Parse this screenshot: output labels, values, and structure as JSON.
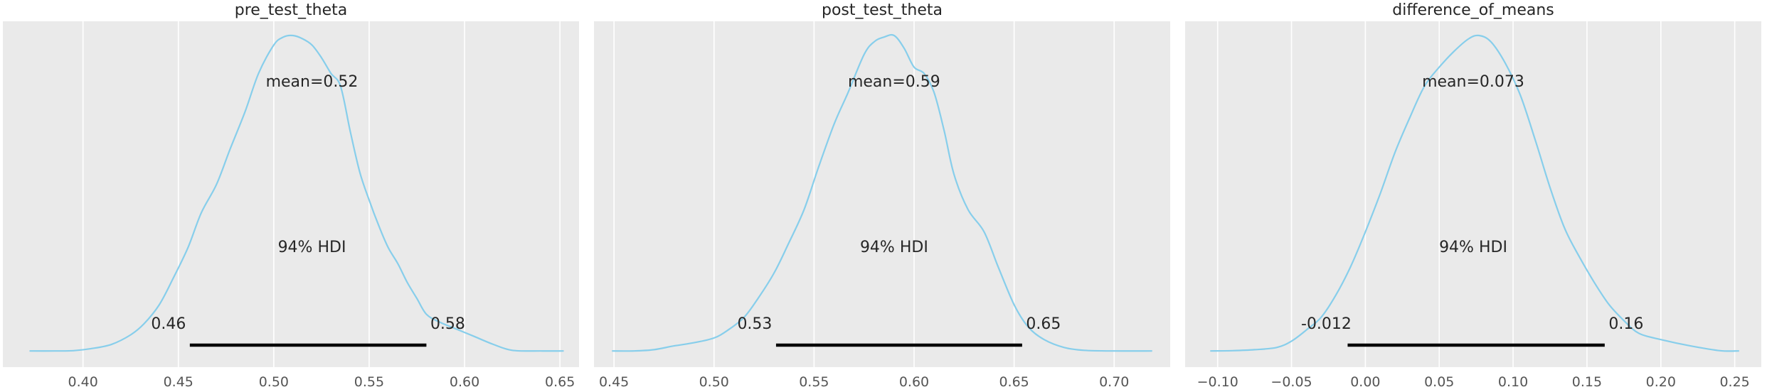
{
  "chart_data": [
    {
      "type": "density",
      "title": "pre_test_theta",
      "xlim": [
        0.358,
        0.66
      ],
      "xticks": [
        0.4,
        0.45,
        0.5,
        0.55,
        0.6,
        0.65
      ],
      "xtick_labels": [
        "0.40",
        "0.45",
        "0.50",
        "0.55",
        "0.60",
        "0.65"
      ],
      "mean": 0.52,
      "mean_label": "mean=0.52",
      "hdi_label": "94% HDI",
      "hdi": [
        0.456,
        0.58
      ],
      "hdi_labels": [
        "0.46",
        "0.58"
      ],
      "density": {
        "x": [
          0.372,
          0.385,
          0.395,
          0.405,
          0.415,
          0.425,
          0.432,
          0.44,
          0.447,
          0.455,
          0.462,
          0.47,
          0.477,
          0.485,
          0.492,
          0.5,
          0.505,
          0.51,
          0.515,
          0.52,
          0.525,
          0.53,
          0.535,
          0.54,
          0.545,
          0.55,
          0.555,
          0.56,
          0.565,
          0.57,
          0.575,
          0.58,
          0.587,
          0.595,
          0.605,
          0.615,
          0.625,
          0.64,
          0.652
        ],
        "y": [
          0.004,
          0.004,
          0.005,
          0.012,
          0.025,
          0.055,
          0.09,
          0.15,
          0.23,
          0.33,
          0.44,
          0.53,
          0.64,
          0.76,
          0.88,
          0.97,
          0.995,
          1.0,
          0.99,
          0.97,
          0.93,
          0.88,
          0.84,
          0.7,
          0.57,
          0.48,
          0.4,
          0.33,
          0.28,
          0.22,
          0.17,
          0.12,
          0.095,
          0.075,
          0.05,
          0.025,
          0.006,
          0.004,
          0.004
        ]
      }
    },
    {
      "type": "density",
      "title": "post_test_theta",
      "xlim": [
        0.44,
        0.728
      ],
      "xticks": [
        0.45,
        0.5,
        0.55,
        0.6,
        0.65,
        0.7
      ],
      "xtick_labels": [
        "0.45",
        "0.50",
        "0.55",
        "0.60",
        "0.65",
        "0.70"
      ],
      "mean": 0.59,
      "mean_label": "mean=0.59",
      "hdi_label": "94% HDI",
      "hdi": [
        0.531,
        0.654
      ],
      "hdi_labels": [
        "0.53",
        "0.65"
      ],
      "density": {
        "x": [
          0.449,
          0.46,
          0.47,
          0.48,
          0.49,
          0.5,
          0.507,
          0.515,
          0.522,
          0.53,
          0.537,
          0.545,
          0.552,
          0.56,
          0.567,
          0.575,
          0.58,
          0.585,
          0.59,
          0.595,
          0.6,
          0.605,
          0.61,
          0.615,
          0.62,
          0.627,
          0.635,
          0.642,
          0.65,
          0.657,
          0.665,
          0.675,
          0.685,
          0.7,
          0.719
        ],
        "y": [
          0.004,
          0.004,
          0.008,
          0.02,
          0.03,
          0.045,
          0.07,
          0.11,
          0.17,
          0.25,
          0.34,
          0.45,
          0.58,
          0.72,
          0.82,
          0.94,
          0.98,
          0.995,
          1.0,
          0.96,
          0.9,
          0.88,
          0.82,
          0.7,
          0.56,
          0.45,
          0.38,
          0.27,
          0.15,
          0.08,
          0.04,
          0.015,
          0.006,
          0.004,
          0.004
        ]
      }
    },
    {
      "type": "density",
      "title": "difference_of_means",
      "xlim": [
        -0.122,
        0.268
      ],
      "xticks": [
        -0.1,
        -0.05,
        0.0,
        0.05,
        0.1,
        0.15,
        0.2,
        0.25
      ],
      "xtick_labels": [
        "−0.10",
        "−0.05",
        "0.00",
        "0.05",
        "0.10",
        "0.15",
        "0.20",
        "0.25"
      ],
      "mean": 0.073,
      "mean_label": "mean=0.073",
      "hdi_label": "94% HDI",
      "hdi": [
        -0.012,
        0.162
      ],
      "hdi_labels": [
        "-0.012",
        "0.16"
      ],
      "density": {
        "x": [
          -0.105,
          -0.09,
          -0.075,
          -0.06,
          -0.05,
          -0.04,
          -0.03,
          -0.02,
          -0.01,
          0.0,
          0.01,
          0.02,
          0.03,
          0.04,
          0.05,
          0.06,
          0.07,
          0.077,
          0.085,
          0.095,
          0.105,
          0.115,
          0.125,
          0.135,
          0.145,
          0.155,
          0.165,
          0.175,
          0.185,
          0.2,
          0.22,
          0.24,
          0.253
        ],
        "y": [
          0.004,
          0.005,
          0.008,
          0.015,
          0.035,
          0.07,
          0.11,
          0.18,
          0.27,
          0.38,
          0.5,
          0.63,
          0.74,
          0.84,
          0.9,
          0.95,
          0.99,
          1.0,
          0.98,
          0.91,
          0.81,
          0.67,
          0.52,
          0.39,
          0.3,
          0.22,
          0.15,
          0.1,
          0.06,
          0.04,
          0.02,
          0.005,
          0.004
        ]
      }
    }
  ]
}
